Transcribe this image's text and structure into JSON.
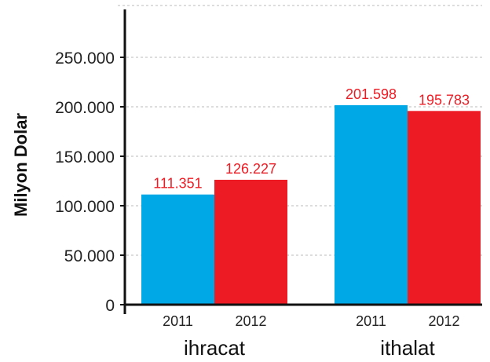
{
  "chart_data": {
    "type": "bar",
    "ylabel": "Milyon Dolar",
    "ylim": [
      0,
      300000
    ],
    "yticks": [
      {
        "value": 0,
        "label": "0"
      },
      {
        "value": 50000,
        "label": "50.000"
      },
      {
        "value": 100000,
        "label": "100.000"
      },
      {
        "value": 150000,
        "label": "150.000"
      },
      {
        "value": 200000,
        "label": "200.000"
      },
      {
        "value": 250000,
        "label": "250.000"
      }
    ],
    "grid": true,
    "groups": [
      {
        "name": "ihracat",
        "bars": [
          {
            "category": "2011",
            "value": 111351,
            "label": "111.351",
            "color": "#00a8e6"
          },
          {
            "category": "2012",
            "value": 126227,
            "label": "126.227",
            "color": "#ed1c24"
          }
        ]
      },
      {
        "name": "ithalat",
        "bars": [
          {
            "category": "2011",
            "value": 201598,
            "label": "201.598",
            "color": "#00a8e6"
          },
          {
            "category": "2012",
            "value": 195783,
            "label": "195.783",
            "color": "#ed1c24"
          }
        ]
      }
    ],
    "label_color": "#ed1c24"
  }
}
